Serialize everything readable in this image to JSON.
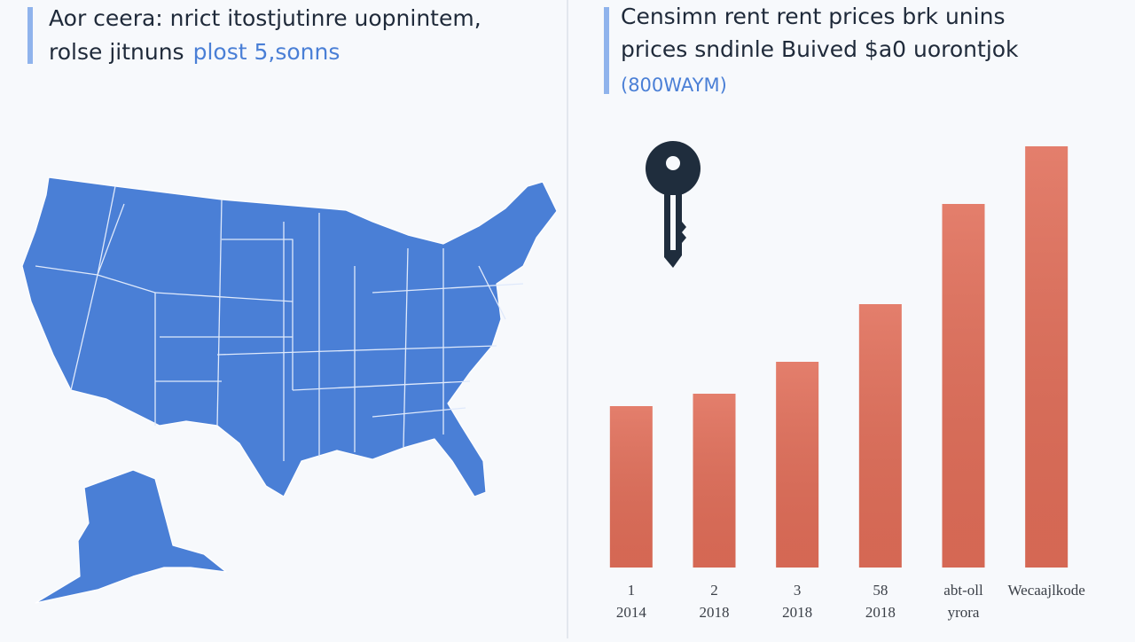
{
  "left_panel": {
    "title_line_1": "Aor ceera: nrict itostjutinre uopnintem,",
    "title_line_2": "rolse jitnuns",
    "title_highlight": "plost 5,sonns"
  },
  "chart_data": {
    "type": "bar",
    "title_line_1": "Censimn rent rent prices brk unins",
    "title_line_2": "prices sndinle Buived $a0 uorontjok",
    "subtitle": "(800WAYM)",
    "categories": [
      "1",
      "2",
      "3",
      "58",
      "abt-oll",
      "Wecaajlkode"
    ],
    "category_sublabels": [
      "2014",
      "2018",
      "2018",
      "2018",
      "yrora",
      null
    ],
    "values": [
      182,
      196,
      232,
      297,
      410,
      475
    ],
    "color": "#e06d58",
    "ylim": [
      0,
      500
    ]
  }
}
